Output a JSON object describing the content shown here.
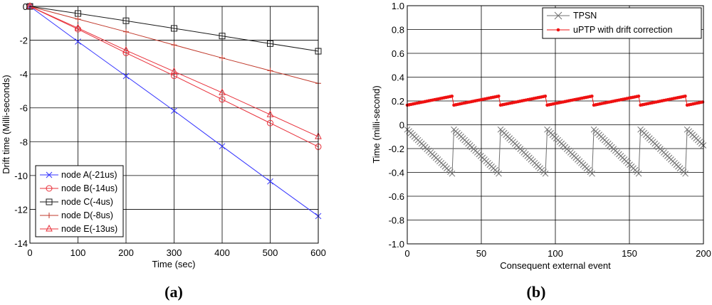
{
  "panels": {
    "a": "(a)",
    "b": "(b)"
  },
  "colors": {
    "nodeA": "#3333ff",
    "nodeB": "#e8303a",
    "nodeC": "#1a1a1a",
    "nodeD": "#c0392b",
    "nodeE": "#e8303a",
    "tpsn": "#707070",
    "uptp": "#ee1111",
    "grid": "#000000"
  },
  "chart_data": [
    {
      "type": "line",
      "xlabel": "Time (sec)",
      "ylabel": "Drift time (Milli-seconds)",
      "xlim": [
        0,
        600
      ],
      "ylim": [
        -14,
        0
      ],
      "xticks": [
        0,
        100,
        200,
        300,
        400,
        500,
        600
      ],
      "yticks": [
        0,
        -2,
        -4,
        -6,
        -8,
        -10,
        -12,
        -14
      ],
      "grid": true,
      "legend_position": "bottom-left",
      "x": [
        0,
        100,
        200,
        300,
        400,
        500,
        600
      ],
      "series": [
        {
          "name": "node A(-21us)",
          "marker": "x",
          "color_key": "nodeA",
          "values": [
            0,
            -2.08,
            -4.12,
            -6.17,
            -8.27,
            -10.35,
            -12.4
          ]
        },
        {
          "name": "node B(-14us)",
          "marker": "o",
          "color_key": "nodeB",
          "values": [
            0,
            -1.35,
            -2.75,
            -4.1,
            -5.5,
            -6.9,
            -8.3
          ]
        },
        {
          "name": "node C(-4us)",
          "marker": "s",
          "color_key": "nodeC",
          "values": [
            0,
            -0.42,
            -0.85,
            -1.3,
            -1.75,
            -2.2,
            -2.65
          ]
        },
        {
          "name": "node D(-8us)",
          "marker": "+",
          "color_key": "nodeD",
          "values": [
            0,
            -0.75,
            -1.5,
            -2.28,
            -3.05,
            -3.8,
            -4.55
          ]
        },
        {
          "name": "node E(-13us)",
          "marker": "^",
          "color_key": "nodeE",
          "values": [
            0,
            -1.28,
            -2.6,
            -3.85,
            -5.1,
            -6.4,
            -7.7
          ]
        }
      ]
    },
    {
      "type": "line",
      "xlabel": "Consequent external event",
      "ylabel": "Time (milli-second)",
      "xlim": [
        0,
        200
      ],
      "ylim": [
        -1,
        1
      ],
      "xticks": [
        0,
        50,
        100,
        150,
        200
      ],
      "yticks": [
        1.0,
        0.8,
        0.6,
        0.4,
        0.2,
        0,
        -0.2,
        -0.4,
        -0.6,
        -0.8,
        -1.0
      ],
      "ytick_labels": [
        "1.0",
        "0.8",
        "0.6",
        "0.4",
        "0.2",
        "0",
        "-0.2",
        "-0.4",
        "-0.6",
        "-0.8",
        "-1.0"
      ],
      "grid": true,
      "legend_position": "top-right",
      "series": [
        {
          "name": "TPSN",
          "marker": "x",
          "color_key": "tpsn",
          "shape": "sawtooth",
          "period": 31.5,
          "cycle_start": 0,
          "points_per_cycle": 26,
          "start_value": -0.04,
          "end_value": -0.41,
          "cycles": 7
        },
        {
          "name": "uPTP with drift correction",
          "marker": ".",
          "color_key": "uptp",
          "shape": "sawtooth",
          "period": 31.5,
          "cycle_start": 0,
          "points_per_cycle": 24,
          "start_value": 0.165,
          "end_value": 0.24,
          "cycles": 7
        }
      ]
    }
  ]
}
